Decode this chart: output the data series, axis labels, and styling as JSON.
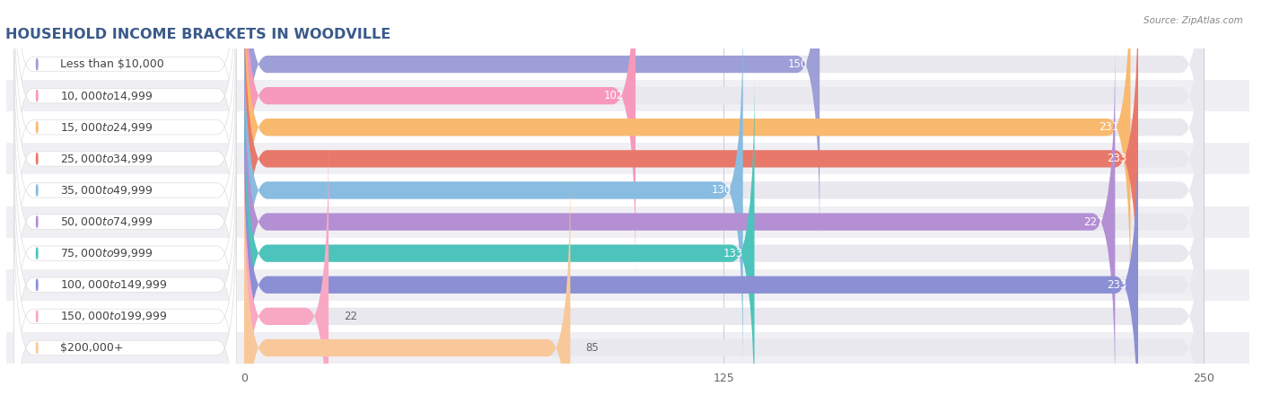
{
  "title": "HOUSEHOLD INCOME BRACKETS IN WOODVILLE",
  "source": "Source: ZipAtlas.com",
  "categories": [
    "Less than $10,000",
    "$10,000 to $14,999",
    "$15,000 to $24,999",
    "$25,000 to $34,999",
    "$35,000 to $49,999",
    "$50,000 to $74,999",
    "$75,000 to $99,999",
    "$100,000 to $149,999",
    "$150,000 to $199,999",
    "$200,000+"
  ],
  "values": [
    150,
    102,
    231,
    233,
    130,
    227,
    133,
    233,
    22,
    85
  ],
  "colors": [
    "#9d9fd6",
    "#f799bb",
    "#f9b96e",
    "#e8796a",
    "#88bce0",
    "#b48fd4",
    "#4dc4bb",
    "#8b8fd4",
    "#f9a8c4",
    "#f9c89a"
  ],
  "xlim_min": -62,
  "xlim_max": 262,
  "data_min": 0,
  "data_max": 250,
  "xticks": [
    0,
    125,
    250
  ],
  "bar_height": 0.55,
  "row_colors": [
    "#ffffff",
    "#f0f0f4"
  ],
  "background_color": "#ffffff",
  "bar_bg_color": "#e8e8ee",
  "label_fontsize": 9.0,
  "value_fontsize": 8.5,
  "title_fontsize": 11.5,
  "label_badge_color": "#ffffff",
  "label_text_color": "#444444",
  "value_color_inside": "#ffffff",
  "value_color_outside": "#666666"
}
